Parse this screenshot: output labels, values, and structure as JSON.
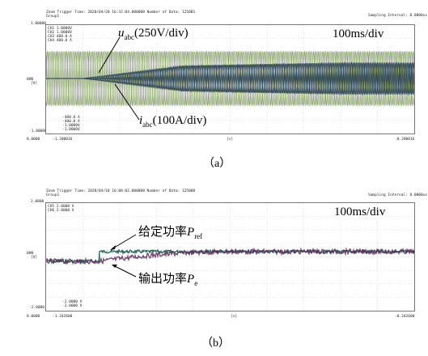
{
  "panel_a": {
    "header_line1": "Zoom Trigger Time: 2020/04/20 16:32:04.000000    Number of Data: 125001",
    "header_line2": "Group1",
    "sampling": "Sampling Interval: 8.0000us",
    "y_top": "1.00000",
    "y_bottom": "-1.00000",
    "y_mid_label": "0ON",
    "y_mid_unit": "[V]",
    "x_left_tick": "-1.200016",
    "x_right_tick": "-0.200016",
    "x_mid_unit": "[s]",
    "x_origin": "0.0000",
    "legend_top": [
      "CH1   1.0000V",
      "CH2   1.0000V",
      "CH3   400.0 A",
      "CH4   400.0 A"
    ],
    "legend_bottom": [
      "-400.0 A",
      "-400.0 A",
      "-1.0000V",
      "-1.0000V"
    ],
    "voltage_label_var": "u",
    "voltage_label_sub": "abc",
    "voltage_label_rest": "(250V/div)",
    "current_label_var": "i",
    "current_label_sub": "abc",
    "current_label_rest": "(100A/div)",
    "timebase": "100ms/div",
    "caption": "（a）"
  },
  "panel_b": {
    "header_line1": "Zoom Trigger Time: 2020/04/10 16:08:02.000000    Number of Data: 125000",
    "header_line2": "Group1",
    "sampling": "Sampling Interval: 8.0000us",
    "y_top": "2.0000",
    "y_bottom": "-2.0000",
    "y_mid_label": "0ON",
    "y_mid_unit": "[V]",
    "x_left_tick": "-1.342600",
    "x_right_tick": "-0.342600",
    "x_mid_unit": "[s]",
    "x_origin": "0.0000",
    "legend_top": [
      "CH5   2.0000 V",
      "CH6   2.0000 V"
    ],
    "legend_bottom": [
      "-2.0000 V",
      "-2.0000 V"
    ],
    "ref_label_text": "给定功率",
    "ref_label_var": "P",
    "ref_label_sub": "ref",
    "out_label_text": "输出功率",
    "out_label_var": "P",
    "out_label_sub": "e",
    "timebase": "100ms/div",
    "caption": "（b）"
  },
  "colors": {
    "voltage_trace": "#6e8a4c",
    "current_trace": "#233a4c",
    "ref_trace": "#1d5a4e",
    "out_trace": "#5c2a5a",
    "grid": "#c8c8c8"
  }
}
